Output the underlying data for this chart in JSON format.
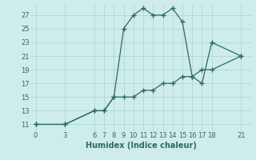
{
  "xlabel": "Humidex (Indice chaleur)",
  "line_color": "#2d6b5e",
  "bg_color": "#ceecea",
  "grid_color": "#aed8d4",
  "marker": "+",
  "x_ticks": [
    0,
    3,
    6,
    7,
    8,
    9,
    10,
    11,
    12,
    13,
    14,
    15,
    16,
    17,
    18,
    21
  ],
  "series1_x": [
    0,
    3,
    6,
    7,
    8,
    9,
    10,
    11,
    12,
    13,
    14,
    15,
    16,
    17,
    18,
    21
  ],
  "series1_y": [
    11,
    11,
    13,
    13,
    15,
    25,
    27,
    28,
    27,
    27,
    28,
    26,
    18,
    17,
    23,
    21
  ],
  "series2_x": [
    0,
    3,
    6,
    7,
    8,
    9,
    10,
    11,
    12,
    13,
    14,
    15,
    16,
    17,
    18,
    21
  ],
  "series2_y": [
    11,
    11,
    13,
    13,
    15,
    15,
    15,
    16,
    16,
    17,
    17,
    18,
    18,
    19,
    19,
    21
  ],
  "ylim": [
    10,
    28.5
  ],
  "xlim": [
    -0.5,
    22
  ],
  "yticks": [
    11,
    13,
    15,
    17,
    19,
    21,
    23,
    25,
    27
  ],
  "tick_fontsize": 6,
  "xlabel_fontsize": 7
}
